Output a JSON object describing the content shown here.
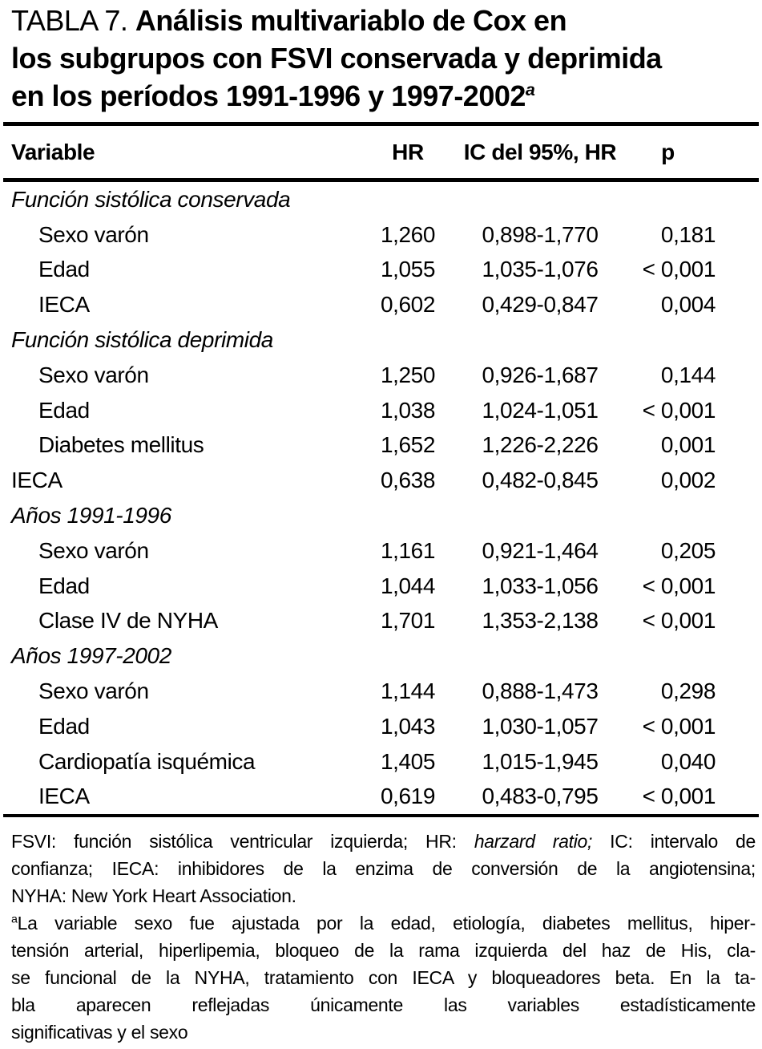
{
  "title": {
    "prefix": "TABLA 7. ",
    "line1_bold": "Análisis multivariablo de Cox en",
    "line2_bold": "los subgrupos con FSVI conservada y deprimida",
    "line3_bold": "en los períodos 1991-1996 y 1997-2002",
    "footnote_marker": "a"
  },
  "table": {
    "header": {
      "variable": "Variable",
      "hr": "HR",
      "ic": "IC del 95%, HR",
      "p": "p"
    },
    "rows": [
      {
        "style": "group",
        "label": "Función sistólica conservada",
        "hr": "",
        "ic": "",
        "p": ""
      },
      {
        "style": "indent",
        "label": "Sexo varón",
        "hr": "1,260",
        "ic": "0,898-1,770",
        "p": "0,181"
      },
      {
        "style": "indent",
        "label": "Edad",
        "hr": "1,055",
        "ic": "1,035-1,076",
        "p": "< 0,001"
      },
      {
        "style": "indent",
        "label": "IECA",
        "hr": "0,602",
        "ic": "0,429-0,847",
        "p": "0,004"
      },
      {
        "style": "group",
        "label": "Función sistólica deprimida",
        "hr": "",
        "ic": "",
        "p": ""
      },
      {
        "style": "indent",
        "label": "Sexo varón",
        "hr": "1,250",
        "ic": "0,926-1,687",
        "p": "0,144"
      },
      {
        "style": "indent",
        "label": "Edad",
        "hr": "1,038",
        "ic": "1,024-1,051",
        "p": "< 0,001"
      },
      {
        "style": "indent",
        "label": "Diabetes mellitus",
        "hr": "1,652",
        "ic": "1,226-2,226",
        "p": "0,001"
      },
      {
        "style": "flush",
        "label": "IECA",
        "hr": "0,638",
        "ic": "0,482-0,845",
        "p": "0,002"
      },
      {
        "style": "group",
        "label": "Años 1991-1996",
        "hr": "",
        "ic": "",
        "p": ""
      },
      {
        "style": "indent",
        "label": "Sexo varón",
        "hr": "1,161",
        "ic": "0,921-1,464",
        "p": "0,205"
      },
      {
        "style": "indent",
        "label": "Edad",
        "hr": "1,044",
        "ic": "1,033-1,056",
        "p": "< 0,001"
      },
      {
        "style": "indent",
        "label": "Clase IV de NYHA",
        "hr": "1,701",
        "ic": "1,353-2,138",
        "p": "< 0,001"
      },
      {
        "style": "group",
        "label": "Años 1997-2002",
        "hr": "",
        "ic": "",
        "p": ""
      },
      {
        "style": "indent",
        "label": "Sexo varón",
        "hr": "1,144",
        "ic": "0,888-1,473",
        "p": "0,298"
      },
      {
        "style": "indent",
        "label": "Edad",
        "hr": "1,043",
        "ic": "1,030-1,057",
        "p": "< 0,001"
      },
      {
        "style": "indent",
        "label": "Cardiopatía isquémica",
        "hr": "1,405",
        "ic": "1,015-1,945",
        "p": "0,040"
      },
      {
        "style": "indent",
        "label": "IECA",
        "hr": "0,619",
        "ic": "0,483-0,795",
        "p": "< 0,001"
      }
    ]
  },
  "footnotes": {
    "abbr": {
      "line1_pre": "FSVI: función sistólica ventricular izquierda; HR: ",
      "line1_italic": "harzard ratio;",
      "line1_post": " IC: intervalo de",
      "line2": "confianza; IECA: inhibidores de la enzima de conversión de la angiotensina;",
      "line3": "NYHA: New York Heart Association."
    },
    "note_a": {
      "marker": "a",
      "line1": "La variable sexo fue ajustada por la edad, etiología, diabetes mellitus, hiper-",
      "line2": "tensión arterial, hiperlipemia, bloqueo de la rama izquierda del haz de His, cla-",
      "line3": "se funcional de la NYHA, tratamiento con IECA y bloqueadores beta. En la ta-",
      "line4": "bla aparecen reflejadas únicamente las variables estadísticamente",
      "line5": "significativas y el sexo"
    }
  }
}
